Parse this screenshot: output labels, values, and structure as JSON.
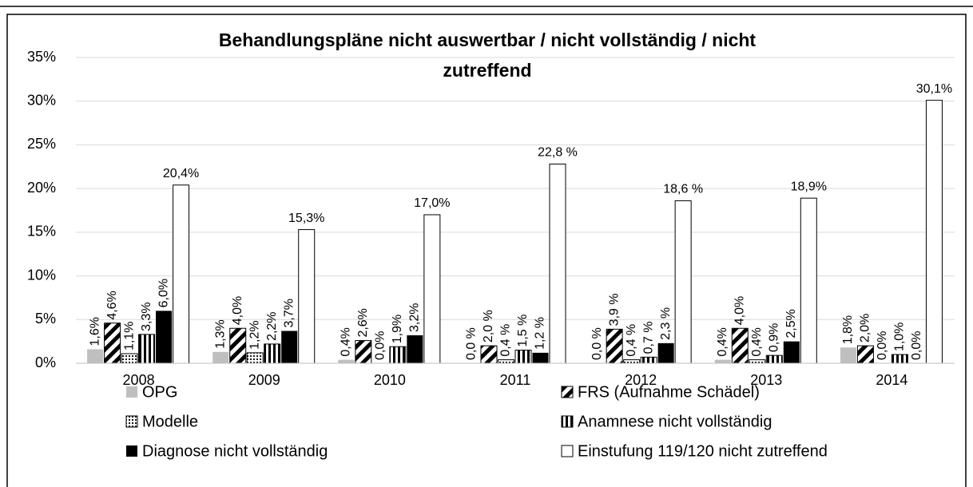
{
  "chart_data": {
    "type": "bar",
    "title": [
      "Behandlungspläne  nicht auswertbar / nicht vollständig / nicht",
      "zutreffend"
    ],
    "categories": [
      "2008",
      "2009",
      "2010",
      "2011",
      "2012",
      "2013",
      "2014"
    ],
    "ylim": [
      0,
      35
    ],
    "yticks": [
      {
        "value": 0,
        "label": "0%"
      },
      {
        "value": 5,
        "label": "5%"
      },
      {
        "value": 10,
        "label": "10%"
      },
      {
        "value": 15,
        "label": "15%"
      },
      {
        "value": 20,
        "label": "20%"
      },
      {
        "value": 25,
        "label": "25%"
      },
      {
        "value": 30,
        "label": "30%"
      },
      {
        "value": 35,
        "label": "35%"
      }
    ],
    "grid": true,
    "series": [
      {
        "name": "OPG",
        "color": "#bfbfbf",
        "pattern": "solid",
        "values": [
          1.6,
          1.3,
          0.4,
          0.0,
          0.0,
          0.4,
          1.8
        ],
        "value_labels": [
          "1,6%",
          "1,3%",
          "0,4%",
          "0,0 %",
          "0,0 %",
          "0,4%",
          "1,8%"
        ]
      },
      {
        "name": "FRS (Aufnahme Schädel)",
        "color": "#000000",
        "pattern": "diagonal",
        "values": [
          4.6,
          4.0,
          2.6,
          2.0,
          3.9,
          4.0,
          2.0
        ],
        "value_labels": [
          "4,6%",
          "4,0%",
          "2,6%",
          "2,0 %",
          "3,9 %",
          "4,0%",
          "2,0%"
        ]
      },
      {
        "name": "Modelle",
        "color": "#000000",
        "pattern": "dots",
        "values": [
          1.1,
          1.2,
          0.0,
          0.4,
          0.4,
          0.4,
          0.0
        ],
        "value_labels": [
          "1,1%",
          "1,2%",
          "0,0%",
          "0,4 %",
          "0,4 %",
          "0,4%",
          "0,0%"
        ]
      },
      {
        "name": "Anamnese nicht vollständig",
        "color": "#000000",
        "pattern": "vertical",
        "values": [
          3.3,
          2.2,
          1.9,
          1.5,
          0.7,
          0.9,
          1.0
        ],
        "value_labels": [
          "3,3%",
          "2,2%",
          "1,9%",
          "1,5 %",
          "0,7 %",
          "0,9%",
          "1,0%"
        ]
      },
      {
        "name": "Diagnose nicht vollständig",
        "color": "#000000",
        "pattern": "solid",
        "values": [
          6.0,
          3.7,
          3.2,
          1.2,
          2.3,
          2.5,
          0.0
        ],
        "value_labels": [
          "6,0%",
          "3,7%",
          "3,2%",
          "1,2 %",
          "2,3 %",
          "2,5%",
          "0,0%"
        ]
      },
      {
        "name": "Einstufung 119/120 nicht zutreffend",
        "color": "#ffffff",
        "pattern": "solid",
        "values": [
          20.4,
          15.3,
          17.0,
          22.8,
          18.6,
          18.9,
          30.1
        ],
        "value_labels": [
          "20,4%",
          "15,3%",
          "17,0%",
          "22,8 %",
          "18,6 %",
          "18,9%",
          "30,1%"
        ]
      }
    ]
  }
}
